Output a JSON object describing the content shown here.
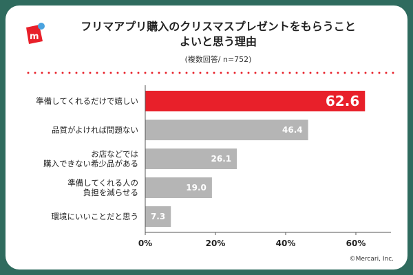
{
  "header": {
    "title_line1": "フリマアプリ購入のクリスマスプレゼントをもらうこと",
    "title_line2": "よいと思う理由",
    "subtitle": "(複数回答/ n=752)",
    "logo": "mercari-logo-icon"
  },
  "footer": {
    "copyright": "©Mercari, Inc."
  },
  "colors": {
    "highlight": "#e8202a",
    "bar": "#b5b5b5",
    "frame": "#2f6b5e"
  },
  "chart_data": {
    "type": "bar",
    "orientation": "horizontal",
    "categories": [
      [
        "準備してくれるだけで嬉しい"
      ],
      [
        "品質がよければ問題ない"
      ],
      [
        "お店などでは",
        "購入できない希少品がある"
      ],
      [
        "準備してくれる人の",
        "負担を減らせる"
      ],
      [
        "環境にいいことだと思う"
      ]
    ],
    "values": [
      62.6,
      46.4,
      26.1,
      19.0,
      7.3
    ],
    "value_labels": [
      "62.6",
      "46.4",
      "26.1",
      "19.0",
      "7.3"
    ],
    "highlight_index": 0,
    "xlim": [
      0,
      70
    ],
    "x_ticks": [
      0,
      20,
      40,
      60
    ],
    "x_tick_labels": [
      "0%",
      "20%",
      "40%",
      "60%"
    ],
    "grid": false
  }
}
